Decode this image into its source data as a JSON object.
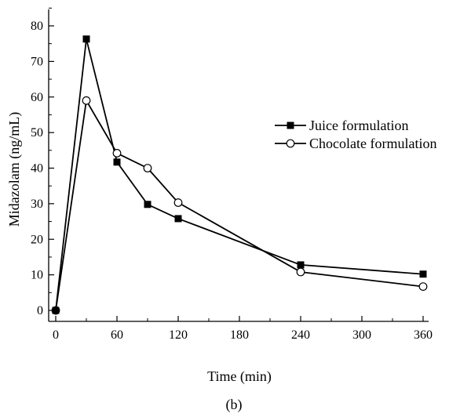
{
  "chart_data": {
    "type": "line",
    "xlabel": "Time (min)",
    "ylabel": "Midazolam (ng/mL)",
    "caption": "(b)",
    "xlim": [
      0,
      360
    ],
    "ylim": [
      0,
      85
    ],
    "xticks": [
      0,
      60,
      120,
      180,
      240,
      300,
      360
    ],
    "yticks": [
      0,
      10,
      20,
      30,
      40,
      50,
      60,
      70,
      80
    ],
    "legend_position": "right",
    "series": [
      {
        "name": "Juice formulation",
        "marker": "filled-square",
        "color": "#000000",
        "x": [
          0,
          30,
          60,
          90,
          120,
          240,
          360
        ],
        "y": [
          0,
          76.3,
          41.7,
          29.8,
          25.8,
          12.8,
          10.2
        ]
      },
      {
        "name": "Chocolate formulation",
        "marker": "open-circle",
        "color": "#000000",
        "x": [
          0,
          30,
          60,
          90,
          120,
          240,
          360
        ],
        "y": [
          0,
          59.0,
          44.2,
          40.0,
          30.3,
          10.8,
          6.7
        ]
      }
    ]
  }
}
